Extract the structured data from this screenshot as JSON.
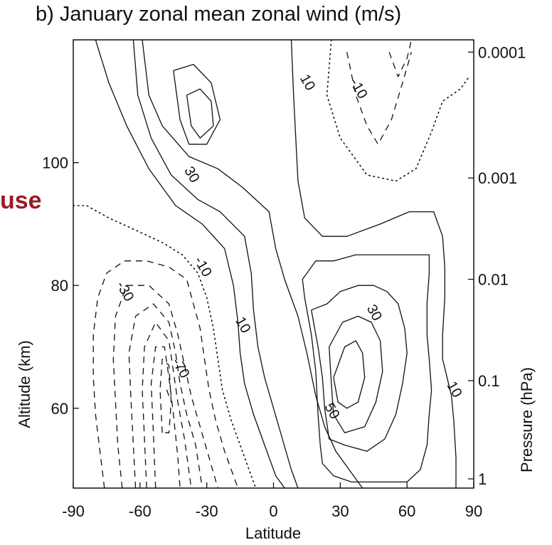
{
  "chart_data": {
    "type": "contour",
    "title": "b) January zonal mean zonal wind (m/s)",
    "overlay_text": "use",
    "xlabel": "Latitude",
    "ylabel": "Altitude (km)",
    "y2label": "Pressure (hPa)",
    "xlim": [
      -90,
      90
    ],
    "ylim": [
      47,
      120
    ],
    "x_ticks": [
      -90,
      -60,
      -30,
      0,
      30,
      60,
      90
    ],
    "y_ticks": [
      60,
      80,
      100
    ],
    "y2_ticks": [
      {
        "label": "0.0001",
        "alt": 118
      },
      {
        "label": "0.001",
        "alt": 97.5
      },
      {
        "label": "0.01",
        "alt": 81
      },
      {
        "label": "0.1",
        "alt": 64.5
      },
      {
        "label": "1",
        "alt": 48.5
      }
    ],
    "contour_interval": 10,
    "line_styles": {
      "positive": "solid",
      "zero": "dotted",
      "negative": "dashed"
    },
    "contour_labels": [
      {
        "text": "30",
        "lat": -37,
        "alt": 98
      },
      {
        "text": "10",
        "lat": 15,
        "alt": 113
      },
      {
        "text": "-10",
        "lat": 38,
        "alt": 112
      },
      {
        "text": "-10",
        "lat": -32,
        "alt": 83
      },
      {
        "text": "-30",
        "lat": -67,
        "alt": 79
      },
      {
        "text": "-70",
        "lat": -42,
        "alt": 66.5
      },
      {
        "text": "10",
        "lat": -14,
        "alt": 73.5
      },
      {
        "text": "30",
        "lat": 45,
        "alt": 75.5
      },
      {
        "text": "50",
        "lat": 26,
        "alt": 59.5
      },
      {
        "text": "10",
        "lat": 81,
        "alt": 63
      }
    ],
    "contours": [
      {
        "value": 10,
        "points": [
          [
            -80,
            120
          ],
          [
            -74,
            113
          ],
          [
            -66,
            106
          ],
          [
            -56,
            99
          ],
          [
            -44,
            93
          ],
          [
            -32,
            90
          ],
          [
            -22,
            86
          ],
          [
            -18,
            80
          ],
          [
            -16,
            74
          ],
          [
            -15,
            69
          ],
          [
            -13,
            64
          ],
          [
            -9,
            59
          ],
          [
            -4,
            54
          ],
          [
            1,
            49
          ],
          [
            5,
            47
          ]
        ]
      },
      {
        "value": 20,
        "points": [
          [
            -63,
            120
          ],
          [
            -61,
            111
          ],
          [
            -55,
            104
          ],
          [
            -46,
            98
          ],
          [
            -34,
            94
          ],
          [
            -24,
            92
          ],
          [
            -13,
            88
          ],
          [
            -10,
            82
          ],
          [
            -9,
            76
          ],
          [
            -7,
            70
          ],
          [
            -4,
            65
          ],
          [
            0,
            60
          ],
          [
            4,
            55
          ],
          [
            8,
            50
          ],
          [
            11,
            47
          ]
        ]
      },
      {
        "value": 30,
        "points": [
          [
            -59,
            120
          ],
          [
            -56,
            111
          ],
          [
            -50,
            106
          ],
          [
            -38,
            101
          ],
          [
            -25,
            99
          ],
          [
            -14,
            96
          ],
          [
            -2,
            92
          ],
          [
            1,
            86
          ],
          [
            5,
            81
          ],
          [
            11,
            75
          ],
          [
            15,
            69
          ],
          [
            19,
            62
          ],
          [
            23,
            57
          ],
          [
            28,
            53
          ],
          [
            34,
            50
          ],
          [
            40,
            47
          ]
        ]
      },
      {
        "value": 40,
        "points": [
          [
            -45,
            115
          ],
          [
            -42,
            107
          ],
          [
            -38,
            103
          ],
          [
            -30,
            103
          ],
          [
            -24,
            107
          ],
          [
            -28,
            113
          ],
          [
            -36,
            116
          ],
          [
            -45,
            115
          ]
        ]
      },
      {
        "value": 50,
        "points": [
          [
            -39,
            111
          ],
          [
            -37,
            106
          ],
          [
            -33,
            104
          ],
          [
            -27,
            106
          ],
          [
            -28,
            110
          ],
          [
            -33,
            112
          ],
          [
            -39,
            111
          ]
        ]
      },
      {
        "value": 10,
        "points": [
          [
            8,
            120
          ],
          [
            9,
            111
          ],
          [
            10,
            104
          ],
          [
            11,
            97
          ],
          [
            14,
            91
          ],
          [
            22,
            88
          ],
          [
            33,
            88
          ],
          [
            48,
            90
          ],
          [
            61,
            92
          ],
          [
            72,
            92
          ],
          [
            76,
            88
          ],
          [
            77,
            83
          ],
          [
            77,
            78
          ],
          [
            76,
            72
          ],
          [
            76,
            68
          ],
          [
            78,
            65
          ],
          [
            80,
            62
          ],
          [
            81,
            58
          ],
          [
            82,
            52
          ],
          [
            82,
            47
          ]
        ]
      },
      {
        "value": 20,
        "points": [
          [
            13,
            81
          ],
          [
            14,
            78
          ],
          [
            17,
            72
          ],
          [
            19,
            66
          ],
          [
            20,
            59
          ],
          [
            21,
            54
          ],
          [
            22,
            51
          ],
          [
            27,
            49
          ],
          [
            35,
            48
          ],
          [
            48,
            48
          ],
          [
            60,
            48
          ],
          [
            66,
            50
          ],
          [
            69,
            54
          ],
          [
            70,
            59
          ],
          [
            71,
            63
          ],
          [
            70,
            68
          ],
          [
            69,
            72
          ],
          [
            69,
            77
          ],
          [
            70,
            82
          ],
          [
            70,
            85
          ],
          [
            61,
            85
          ],
          [
            48,
            85
          ],
          [
            37,
            85
          ],
          [
            27,
            84
          ],
          [
            19,
            84
          ],
          [
            13,
            81
          ]
        ]
      },
      {
        "value": 30,
        "points": [
          [
            17,
            76
          ],
          [
            20,
            70
          ],
          [
            22,
            65
          ],
          [
            23,
            60
          ],
          [
            25,
            55
          ],
          [
            32,
            54
          ],
          [
            42,
            53
          ],
          [
            50,
            55
          ],
          [
            55,
            59
          ],
          [
            58,
            64
          ],
          [
            60,
            69
          ],
          [
            59,
            73
          ],
          [
            56,
            77
          ],
          [
            51,
            79
          ],
          [
            45,
            80
          ],
          [
            38,
            80
          ],
          [
            30,
            79
          ],
          [
            24,
            77
          ],
          [
            17,
            76
          ]
        ]
      },
      {
        "value": 40,
        "points": [
          [
            25,
            70
          ],
          [
            26,
            64
          ],
          [
            27,
            59
          ],
          [
            32,
            56
          ],
          [
            41,
            57
          ],
          [
            46,
            61
          ],
          [
            49,
            66
          ],
          [
            48,
            71
          ],
          [
            44,
            74
          ],
          [
            38,
            75
          ],
          [
            31,
            74
          ],
          [
            25,
            70
          ]
        ]
      },
      {
        "value": 50,
        "points": [
          [
            27,
            65
          ],
          [
            29,
            61
          ],
          [
            33,
            60
          ],
          [
            38,
            61
          ],
          [
            41,
            65
          ],
          [
            40,
            69
          ],
          [
            37,
            71
          ],
          [
            32,
            70
          ],
          [
            27,
            65
          ]
        ]
      },
      {
        "value": 0,
        "points": [
          [
            26,
            120
          ],
          [
            24,
            111
          ],
          [
            30,
            104
          ],
          [
            42,
            98
          ],
          [
            55,
            97
          ],
          [
            64,
            99
          ],
          [
            71,
            105
          ],
          [
            76,
            110
          ],
          [
            84,
            112
          ],
          [
            88,
            114
          ]
        ]
      },
      {
        "value": -10,
        "points": [
          [
            33,
            118
          ],
          [
            37,
            111
          ],
          [
            42,
            106
          ],
          [
            47,
            103
          ],
          [
            53,
            107
          ],
          [
            58,
            113
          ],
          [
            62,
            118
          ]
        ]
      },
      {
        "value": -20,
        "points": [
          [
            52,
            118
          ],
          [
            56,
            114
          ],
          [
            60,
            117
          ],
          [
            62,
            120
          ]
        ]
      },
      {
        "value": 0,
        "points": [
          [
            -90,
            93
          ],
          [
            -84,
            93
          ],
          [
            -74,
            91
          ],
          [
            -62,
            89
          ],
          [
            -50,
            87
          ],
          [
            -41,
            85
          ],
          [
            -34,
            82
          ],
          [
            -30,
            78
          ],
          [
            -27,
            73
          ],
          [
            -25,
            68
          ],
          [
            -23,
            63
          ],
          [
            -19,
            58
          ],
          [
            -14,
            53
          ],
          [
            -10,
            49
          ],
          [
            -8,
            47
          ]
        ]
      },
      {
        "value": -10,
        "points": [
          [
            -76,
            47
          ],
          [
            -78,
            53
          ],
          [
            -80,
            59
          ],
          [
            -81,
            65
          ],
          [
            -81,
            72
          ],
          [
            -79,
            78
          ],
          [
            -75,
            82
          ],
          [
            -67,
            84
          ],
          [
            -57,
            84
          ],
          [
            -47,
            83
          ],
          [
            -39,
            81
          ],
          [
            -36,
            77
          ],
          [
            -33,
            73
          ],
          [
            -31,
            68
          ],
          [
            -29,
            63
          ],
          [
            -26,
            58
          ],
          [
            -22,
            53
          ],
          [
            -18,
            49
          ],
          [
            -16,
            47
          ]
        ]
      },
      {
        "value": -20,
        "points": [
          [
            -68,
            47
          ],
          [
            -70,
            54
          ],
          [
            -71,
            61
          ],
          [
            -72,
            68
          ],
          [
            -71,
            75
          ],
          [
            -66,
            80
          ],
          [
            -56,
            80
          ],
          [
            -47,
            77
          ],
          [
            -43,
            72
          ],
          [
            -40,
            67
          ],
          [
            -37,
            62
          ],
          [
            -33,
            57
          ],
          [
            -29,
            52
          ],
          [
            -25,
            47
          ]
        ]
      },
      {
        "value": -30,
        "points": [
          [
            -62,
            47
          ],
          [
            -63,
            54
          ],
          [
            -64,
            61
          ],
          [
            -65,
            69
          ],
          [
            -62,
            75
          ],
          [
            -54,
            77
          ],
          [
            -47,
            74
          ],
          [
            -44,
            69
          ],
          [
            -42,
            64
          ],
          [
            -39,
            59
          ],
          [
            -35,
            54
          ],
          [
            -32,
            47
          ]
        ]
      },
      {
        "value": -40,
        "points": [
          [
            -57,
            47
          ],
          [
            -58,
            55
          ],
          [
            -59,
            63
          ],
          [
            -58,
            70
          ],
          [
            -53,
            74
          ],
          [
            -47,
            71
          ],
          [
            -45,
            66
          ],
          [
            -43,
            61
          ],
          [
            -40,
            55
          ],
          [
            -37,
            47
          ]
        ]
      },
      {
        "value": -50,
        "points": [
          [
            -53,
            47
          ],
          [
            -54,
            56
          ],
          [
            -55,
            64
          ],
          [
            -53,
            70
          ],
          [
            -49,
            70
          ],
          [
            -47,
            65
          ],
          [
            -45,
            59
          ],
          [
            -43,
            52
          ],
          [
            -42,
            47
          ]
        ]
      },
      {
        "value": -60,
        "points": [
          [
            -50,
            56
          ],
          [
            -51,
            63
          ],
          [
            -50,
            68
          ],
          [
            -47,
            67
          ],
          [
            -46,
            61
          ],
          [
            -47,
            56
          ],
          [
            -50,
            56
          ]
        ]
      },
      {
        "value": -70,
        "points": [
          [
            -48,
            63
          ],
          [
            -47,
            62
          ]
        ]
      }
    ]
  }
}
